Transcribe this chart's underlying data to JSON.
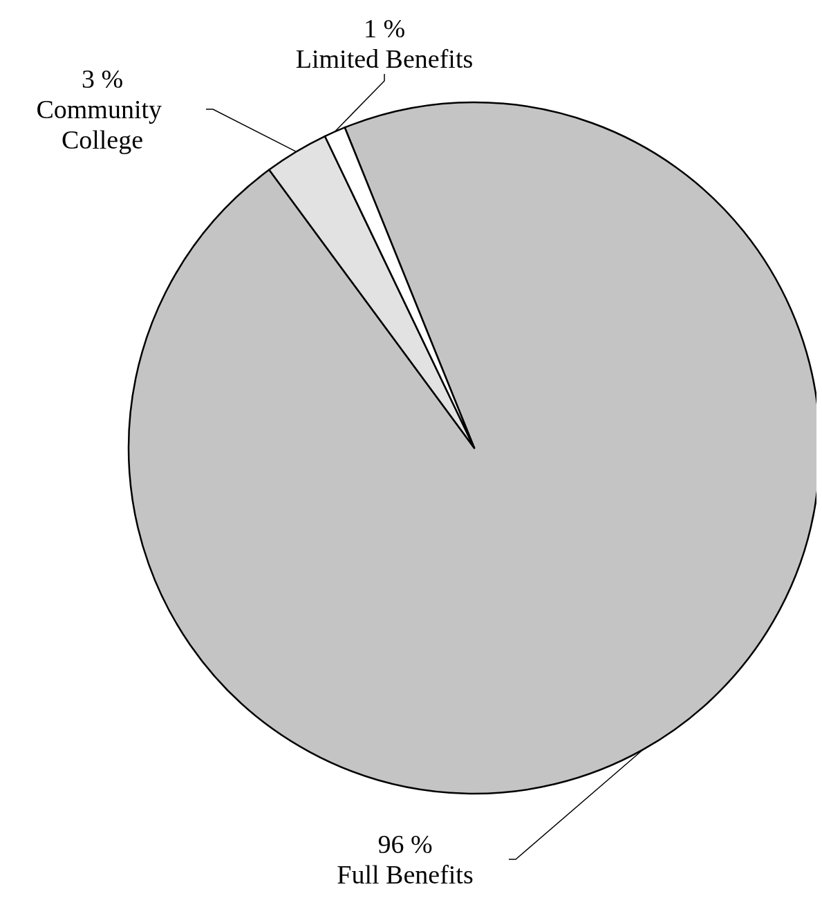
{
  "chart_data": {
    "type": "pie",
    "categories": [
      "Full Benefits",
      "Community College",
      "Limited Benefits"
    ],
    "values": [
      96,
      3,
      1
    ],
    "value_labels": [
      "96 %",
      "3 %",
      "1 %"
    ],
    "colors": [
      "#c4c4c4",
      "#e2e2e2",
      "#ffffff"
    ]
  }
}
